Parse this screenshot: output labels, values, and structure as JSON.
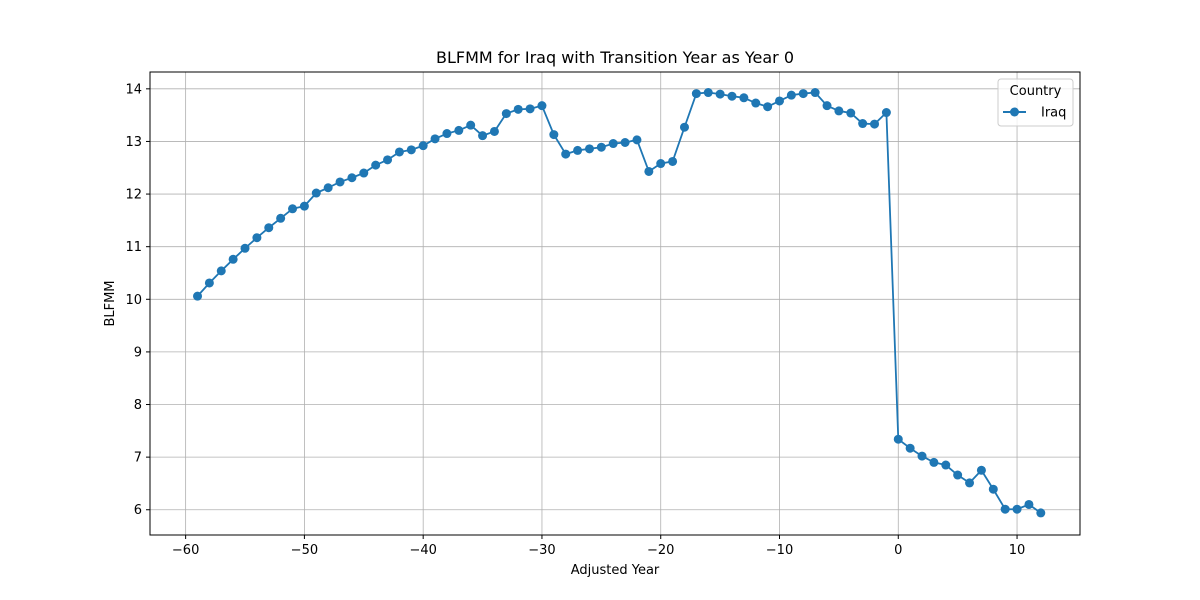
{
  "chart_data": {
    "type": "line",
    "title": "BLFMM for Iraq with Transition Year as Year 0",
    "xlabel": "Adjusted Year",
    "ylabel": "BLFMM",
    "xlim": [
      -63,
      15.3
    ],
    "ylim": [
      5.52,
      14.32
    ],
    "xticks": [
      -60,
      -50,
      -40,
      -30,
      -20,
      -10,
      0,
      10
    ],
    "xtick_labels": [
      "−60",
      "−50",
      "−40",
      "−30",
      "−20",
      "−10",
      "0",
      "10"
    ],
    "yticks": [
      6,
      7,
      8,
      9,
      10,
      11,
      12,
      13,
      14
    ],
    "ytick_labels": [
      "6",
      "7",
      "8",
      "9",
      "10",
      "11",
      "12",
      "13",
      "14"
    ],
    "grid": true,
    "legend": {
      "title": "Country",
      "placement": "top-right"
    },
    "series": [
      {
        "name": "Iraq",
        "color": "#1f77b4",
        "marker": "circle",
        "x": [
          -59,
          -58,
          -57,
          -56,
          -55,
          -54,
          -53,
          -52,
          -51,
          -50,
          -49,
          -48,
          -47,
          -46,
          -45,
          -44,
          -43,
          -42,
          -41,
          -40,
          -39,
          -38,
          -37,
          -36,
          -35,
          -34,
          -33,
          -32,
          -31,
          -30,
          -29,
          -28,
          -27,
          -26,
          -25,
          -24,
          -23,
          -22,
          -21,
          -20,
          -19,
          -18,
          -17,
          -16,
          -15,
          -14,
          -13,
          -12,
          -11,
          -10,
          -9,
          -8,
          -7,
          -6,
          -5,
          -4,
          -3,
          -2,
          -1,
          0,
          1,
          2,
          3,
          4,
          5,
          6,
          7,
          8,
          9,
          10,
          11,
          12
        ],
        "y": [
          10.06,
          10.31,
          10.54,
          10.76,
          10.97,
          11.17,
          11.36,
          11.54,
          11.72,
          11.77,
          12.02,
          12.12,
          12.23,
          12.31,
          12.4,
          12.55,
          12.65,
          12.8,
          12.84,
          12.92,
          13.05,
          13.15,
          13.21,
          13.31,
          13.11,
          13.19,
          13.53,
          13.61,
          13.62,
          13.68,
          13.13,
          12.76,
          12.83,
          12.86,
          12.89,
          12.96,
          12.98,
          13.03,
          12.43,
          12.58,
          12.62,
          13.27,
          13.91,
          13.93,
          13.9,
          13.86,
          13.83,
          13.73,
          13.66,
          13.77,
          13.88,
          13.91,
          13.93,
          13.68,
          13.58,
          13.54,
          13.34,
          13.33,
          13.55,
          7.34,
          7.17,
          7.02,
          6.9,
          6.85,
          6.66,
          6.51,
          6.75,
          6.39,
          6.01,
          6.01,
          6.1,
          5.94
        ]
      }
    ]
  }
}
